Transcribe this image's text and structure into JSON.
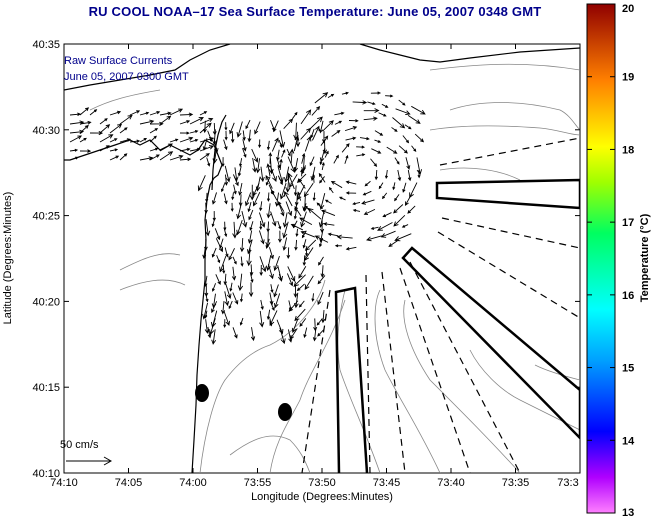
{
  "title": "RU COOL   NOAA–17  Sea Surface Temperature:  June 05, 2007 0348 GMT",
  "legend": {
    "line1": "Raw Surface Currents",
    "line2": "June 05, 2007 0300 GMT",
    "scale_label": "50 cm/s"
  },
  "axes": {
    "xlabel": "Longitude (Degrees:Minutes)",
    "ylabel": "Latitude (Degrees:Minutes)",
    "x_ticks": [
      "74:10",
      "74:05",
      "74:00",
      "73:55",
      "73:50",
      "73:45",
      "73:40",
      "73:35",
      "73:3"
    ],
    "y_ticks": [
      "40:35",
      "40:30",
      "40:25",
      "40:20",
      "40:15",
      "40:10"
    ]
  },
  "colorbar": {
    "label": "Temperature (°C)",
    "ticks": [
      "20",
      "19",
      "18",
      "17",
      "16",
      "15",
      "14",
      "13"
    ],
    "min": 13,
    "max": 20
  },
  "colors": {
    "title": "#00008b",
    "legend_text": "#00008b",
    "coastline": "#000000",
    "vectors": "#000000",
    "bathymetry": "#777777"
  },
  "icons": [
    "arrow-scale-icon",
    "marker-dot"
  ]
}
